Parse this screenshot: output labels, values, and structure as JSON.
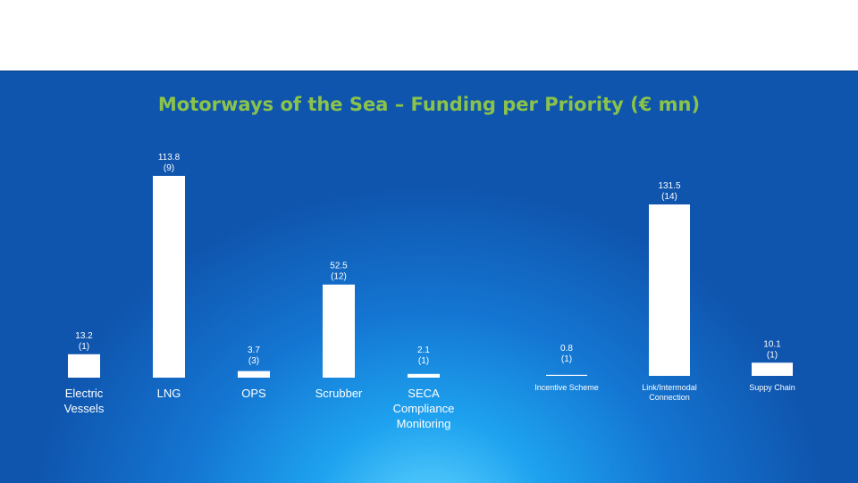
{
  "title": "Motorways of the Sea – Funding per Priority (€ mn)",
  "colors": {
    "bar": "#ffffff",
    "title": "#8bc34a",
    "background": "#1668c8"
  },
  "chart_data": [
    {
      "type": "bar",
      "categories": [
        [
          "Electric",
          "Vessels"
        ],
        [
          "LNG"
        ],
        [
          "OPS"
        ],
        [
          "Scrubber"
        ],
        [
          "SECA",
          "Compliance",
          "Monitoring"
        ]
      ],
      "values": [
        13.2,
        113.8,
        3.7,
        52.5,
        2.1
      ],
      "labels": [
        [
          "13.2",
          "(1)"
        ],
        [
          "113.8",
          "(9)"
        ],
        [
          "3.7",
          "(3)"
        ],
        [
          "52.5",
          "(12)"
        ],
        [
          "2.1",
          "(1)"
        ]
      ],
      "ylim": [
        0,
        113.8
      ]
    },
    {
      "type": "bar",
      "categories": [
        [
          "Incentive Scheme"
        ],
        [
          "Link/Intermodal",
          "Connection"
        ],
        [
          "Suppy Chain"
        ]
      ],
      "values": [
        0.8,
        131.5,
        10.1
      ],
      "labels": [
        [
          "0.8",
          "(1)"
        ],
        [
          "131.5",
          "(14)"
        ],
        [
          "10.1",
          "(1)"
        ]
      ],
      "ylim": [
        0,
        131.5
      ]
    }
  ]
}
